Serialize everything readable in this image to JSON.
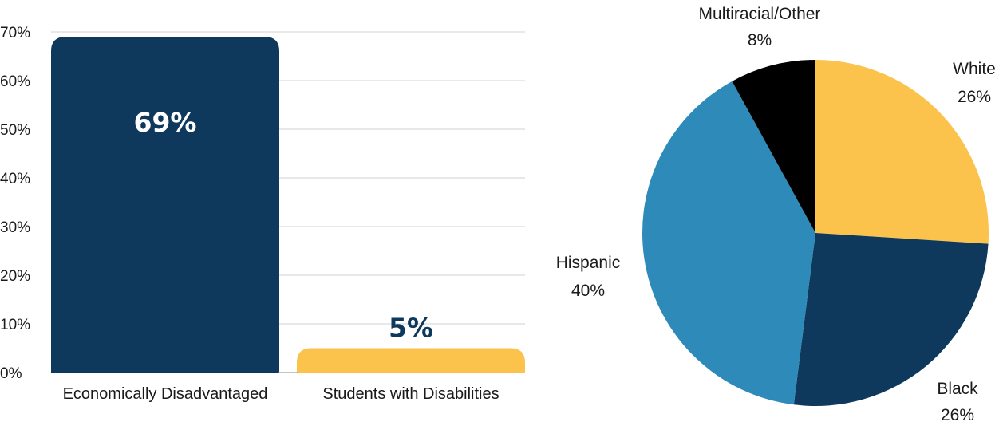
{
  "chart_data": [
    {
      "type": "bar",
      "categories": [
        "Economically Disadvantaged",
        "Students with Disabilities"
      ],
      "values": [
        69,
        5
      ],
      "value_labels": [
        "69%",
        "5%"
      ],
      "colors": [
        "#0e395d",
        "#fbc24c"
      ],
      "value_label_colors": [
        "#ffffff",
        "#0e395d"
      ],
      "ylim": [
        0,
        70
      ],
      "yticks": [
        0,
        10,
        20,
        30,
        40,
        50,
        60,
        70
      ],
      "ytick_labels": [
        "0%",
        "10%",
        "20%",
        "30%",
        "40%",
        "50%",
        "60%",
        "70%"
      ],
      "grid": true,
      "gridline_color": "#d0d0d0",
      "title": "",
      "xlabel": "",
      "ylabel": ""
    },
    {
      "type": "pie",
      "slices": [
        {
          "label": "White",
          "value": 26,
          "value_label": "26%",
          "color": "#fbc24c"
        },
        {
          "label": "Black",
          "value": 26,
          "value_label": "26%",
          "color": "#0e395d"
        },
        {
          "label": "Hispanic",
          "value": 40,
          "value_label": "40%",
          "color": "#2e8bb9"
        },
        {
          "label": "Multiracial/Other",
          "value": 8,
          "value_label": "8%",
          "color": "#000000"
        }
      ],
      "start": "top",
      "direction": "clockwise",
      "title": ""
    }
  ]
}
